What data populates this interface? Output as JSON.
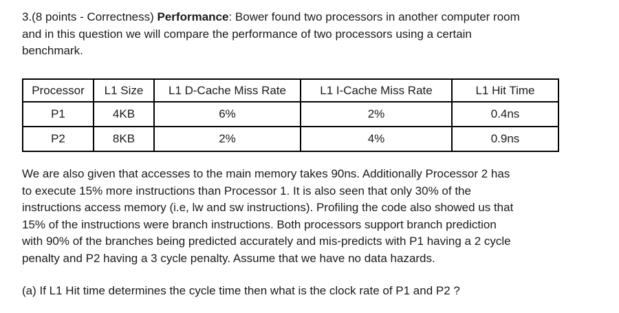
{
  "intro": {
    "prefix": "3.(8 points - Correctness) ",
    "bold_title": "Performance",
    "line1_rest": ": Bower found two processors in another computer room",
    "line2": "and in this question we will compare the performance of two processors using a certain",
    "line3": "benchmark."
  },
  "table": {
    "headers": [
      "Processor",
      "L1 Size",
      "L1 D-Cache Miss Rate",
      "L1 I-Cache Miss Rate",
      "L1 Hit Time"
    ],
    "rows": [
      [
        "P1",
        "4KB",
        "6%",
        "2%",
        "0.4ns"
      ],
      [
        "P2",
        "8KB",
        "2%",
        "4%",
        "0.9ns"
      ]
    ]
  },
  "details": {
    "lines": [
      "We are also given that accesses to the main memory takes 90ns. Additionally Processor 2 has",
      "to execute 15% more instructions than Processor 1. It is also seen that only 30% of the",
      "instructions access memory (i.e, lw and sw instructions). Profiling the code also showed us that",
      "15% of the instructions were branch instructions. Both processors support branch prediction",
      "with 90% of the branches being predicted accurately and mis-predicts with P1 having a 2 cycle",
      "penalty and P2 having a 3 cycle penalty. Assume that we have no data hazards."
    ]
  },
  "question": {
    "text": "(a) If L1 Hit time determines the cycle time then what is the clock rate of P1 and P2 ?"
  }
}
